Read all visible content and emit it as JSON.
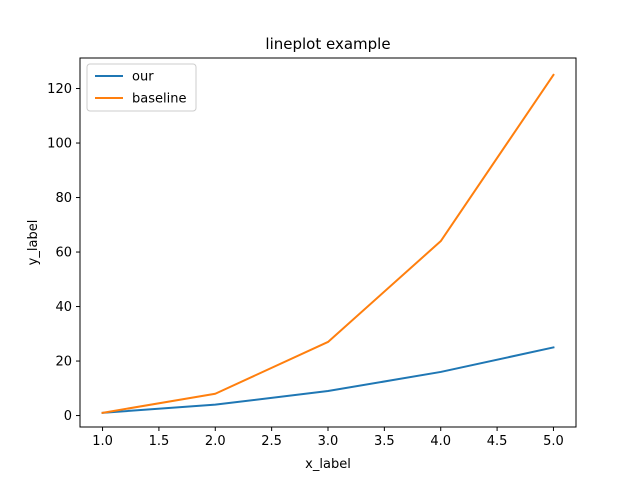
{
  "chart_data": {
    "type": "line",
    "title": "lineplot example",
    "xlabel": "x_label",
    "ylabel": "y_label",
    "x": [
      1,
      2,
      3,
      4,
      5
    ],
    "series": [
      {
        "name": "our",
        "values": [
          1,
          4,
          9,
          16,
          25
        ],
        "color": "#1f77b4"
      },
      {
        "name": "baseline",
        "values": [
          1,
          8,
          27,
          64,
          125
        ],
        "color": "#ff7f0e"
      }
    ],
    "xlim": [
      0.8,
      5.2
    ],
    "ylim": [
      -4.2,
      131.2
    ],
    "xticks": [
      "1.0",
      "1.5",
      "2.0",
      "2.5",
      "3.0",
      "3.5",
      "4.0",
      "4.5",
      "5.0"
    ],
    "yticks": [
      "0",
      "20",
      "40",
      "60",
      "80",
      "100",
      "120"
    ],
    "grid": false,
    "legend_position": "upper-left"
  }
}
